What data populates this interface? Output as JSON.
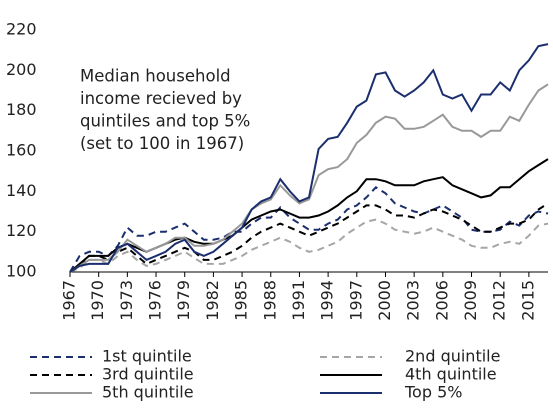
{
  "chart_data": {
    "type": "line",
    "annotation": [
      "Median household",
      "income recieved by",
      "quintiles and top 5%",
      "(set to 100 in 1967)"
    ],
    "x": [
      1967,
      1968,
      1969,
      1970,
      1971,
      1972,
      1973,
      1974,
      1975,
      1976,
      1977,
      1978,
      1979,
      1980,
      1981,
      1982,
      1983,
      1984,
      1985,
      1986,
      1987,
      1988,
      1989,
      1990,
      1991,
      1992,
      1993,
      1994,
      1995,
      1996,
      1997,
      1998,
      1999,
      2000,
      2001,
      2002,
      2003,
      2004,
      2005,
      2006,
      2007,
      2008,
      2009,
      2010,
      2011,
      2012,
      2013,
      2014,
      2015,
      2016,
      2017
    ],
    "xlim": [
      1967,
      2017
    ],
    "xticks": [
      1967,
      1970,
      1973,
      1976,
      1979,
      1982,
      1985,
      1988,
      1991,
      1994,
      1997,
      2000,
      2003,
      2006,
      2009,
      2012,
      2015
    ],
    "ylim": [
      100,
      220
    ],
    "yticks": [
      100,
      120,
      140,
      160,
      180,
      200,
      220
    ],
    "grid": false,
    "series": [
      {
        "name": "1st quintile",
        "color": "#1b2f6e",
        "dashed": true,
        "values": [
          100,
          108,
          110,
          110,
          108,
          113,
          122,
          118,
          118,
          120,
          120,
          122,
          124,
          120,
          116,
          116,
          117,
          120,
          120,
          124,
          127,
          127,
          132,
          127,
          124,
          121,
          121,
          124,
          126,
          131,
          133,
          137,
          142,
          139,
          134,
          132,
          130,
          129,
          131,
          133,
          130,
          127,
          121,
          120,
          120,
          121,
          125,
          123,
          128,
          130,
          129
        ]
      },
      {
        "name": "2nd quintile",
        "color": "#a6a6a6",
        "dashed": true,
        "values": [
          100,
          102,
          106,
          106,
          104,
          108,
          110,
          106,
          103,
          104,
          106,
          108,
          110,
          107,
          104,
          104,
          104,
          106,
          108,
          111,
          113,
          115,
          117,
          115,
          112,
          110,
          111,
          113,
          115,
          119,
          122,
          125,
          126,
          124,
          121,
          120,
          119,
          120,
          122,
          120,
          118,
          116,
          113,
          112,
          112,
          114,
          115,
          114,
          118,
          123,
          124
        ]
      },
      {
        "name": "3rd quintile",
        "color": "#000000",
        "dashed": true,
        "values": [
          100,
          103,
          108,
          108,
          106,
          110,
          112,
          108,
          104,
          106,
          108,
          110,
          112,
          110,
          106,
          106,
          108,
          110,
          113,
          117,
          120,
          122,
          124,
          122,
          120,
          118,
          120,
          122,
          124,
          127,
          130,
          133,
          133,
          131,
          128,
          128,
          127,
          129,
          131,
          130,
          128,
          126,
          123,
          120,
          120,
          122,
          124,
          124,
          126,
          131,
          134
        ]
      },
      {
        "name": "4th quintile",
        "color": "#000000",
        "dashed": false,
        "values": [
          100,
          104,
          108,
          108,
          108,
          112,
          114,
          112,
          110,
          112,
          114,
          116,
          117,
          115,
          114,
          114,
          116,
          118,
          122,
          126,
          128,
          130,
          131,
          129,
          127,
          127,
          128,
          130,
          133,
          137,
          140,
          146,
          146,
          145,
          143,
          143,
          143,
          145,
          146,
          147,
          143,
          141,
          139,
          137,
          138,
          142,
          142,
          146,
          150,
          153,
          156
        ]
      },
      {
        "name": "5th quintile",
        "color": "#999999",
        "dashed": false,
        "values": [
          100,
          103,
          106,
          106,
          106,
          110,
          116,
          113,
          110,
          112,
          114,
          117,
          117,
          113,
          113,
          114,
          116,
          120,
          124,
          131,
          134,
          136,
          143,
          138,
          134,
          136,
          148,
          151,
          152,
          156,
          164,
          168,
          174,
          177,
          176,
          171,
          171,
          172,
          175,
          178,
          172,
          170,
          170,
          167,
          170,
          170,
          177,
          175,
          183,
          190,
          193
        ]
      },
      {
        "name": "Top 5%",
        "color": "#1b2f6e",
        "dashed": false,
        "values": [
          100,
          103,
          104,
          104,
          104,
          112,
          114,
          110,
          106,
          108,
          110,
          114,
          116,
          110,
          108,
          110,
          114,
          118,
          122,
          131,
          135,
          137,
          146,
          140,
          135,
          137,
          161,
          166,
          167,
          174,
          182,
          185,
          198,
          199,
          190,
          187,
          190,
          194,
          200,
          188,
          186,
          188,
          180,
          188,
          188,
          194,
          190,
          200,
          205,
          212,
          213
        ]
      }
    ]
  }
}
